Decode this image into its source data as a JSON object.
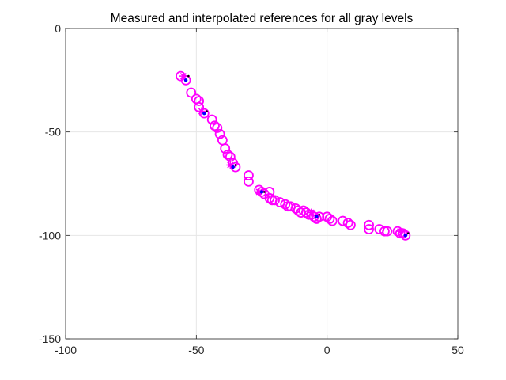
{
  "chart_data": {
    "type": "scatter",
    "title": "Measured and interpolated references for all gray levels",
    "xlabel": "",
    "ylabel": "",
    "xlim": [
      -100,
      50
    ],
    "ylim": [
      -150,
      0
    ],
    "xticks": [
      -100,
      -50,
      0,
      50
    ],
    "yticks": [
      0,
      -50,
      -100,
      -150
    ],
    "xtick_labels": [
      "-100",
      "-50",
      "0",
      "50"
    ],
    "ytick_labels": [
      "0",
      "-50",
      "-100",
      "-150"
    ],
    "grid": true,
    "legend": "none",
    "colors": {
      "circles": "#ff00ff",
      "stars": "#ff00ff",
      "dots": "#0000ff",
      "black_markers": "#000000",
      "grid": "#e6e6e6",
      "axis": "#262626"
    },
    "series": [
      {
        "marker": "circle",
        "color": "#ff00ff",
        "points": [
          [
            -56,
            -23
          ],
          [
            -54,
            -25
          ],
          [
            -52,
            -31
          ],
          [
            -50,
            -34
          ],
          [
            -49,
            -35
          ],
          [
            -49,
            -38
          ],
          [
            -47,
            -41
          ],
          [
            -44,
            -44
          ],
          [
            -43,
            -47
          ],
          [
            -42,
            -48
          ],
          [
            -41,
            -51
          ],
          [
            -40,
            -54
          ],
          [
            -39,
            -58
          ],
          [
            -38,
            -61
          ],
          [
            -37,
            -62
          ],
          [
            -36,
            -65
          ],
          [
            -35,
            -67
          ],
          [
            -30,
            -71
          ],
          [
            -30,
            -74
          ],
          [
            -26,
            -78
          ],
          [
            -25,
            -79
          ],
          [
            -24,
            -80
          ],
          [
            -22,
            -79
          ],
          [
            -22,
            -82
          ],
          [
            -21,
            -83
          ],
          [
            -20,
            -83
          ],
          [
            -18,
            -84
          ],
          [
            -16,
            -85
          ],
          [
            -15,
            -86
          ],
          [
            -14,
            -86
          ],
          [
            -12,
            -87
          ],
          [
            -11,
            -88
          ],
          [
            -10,
            -89
          ],
          [
            -9,
            -88
          ],
          [
            -8,
            -89
          ],
          [
            -7,
            -90
          ],
          [
            -6,
            -90
          ],
          [
            -5,
            -91
          ],
          [
            -4,
            -92
          ],
          [
            -3,
            -91
          ],
          [
            0,
            -91
          ],
          [
            1,
            -92
          ],
          [
            2,
            -93
          ],
          [
            6,
            -93
          ],
          [
            8,
            -94
          ],
          [
            9,
            -95
          ],
          [
            16,
            -95
          ],
          [
            16,
            -97
          ],
          [
            20,
            -97
          ],
          [
            22,
            -98
          ],
          [
            23,
            -98
          ],
          [
            27,
            -98
          ],
          [
            28,
            -99
          ],
          [
            29,
            -99
          ],
          [
            30,
            -100
          ]
        ]
      },
      {
        "marker": "star",
        "color": "#ff00ff",
        "points": [
          [
            -55,
            -23
          ],
          [
            -48,
            -40
          ],
          [
            -37,
            -66
          ],
          [
            -26,
            -79
          ],
          [
            -6,
            -89
          ],
          [
            28,
            -98
          ]
        ]
      },
      {
        "marker": "dot",
        "color": "#0000ff",
        "points": [
          [
            -54,
            -25
          ],
          [
            -47,
            -41
          ],
          [
            -36,
            -67
          ],
          [
            -25,
            -79
          ],
          [
            -4,
            -91
          ],
          [
            30,
            -100
          ]
        ]
      },
      {
        "marker": "black-dot",
        "color": "#000000",
        "points": [
          [
            -53,
            -23
          ],
          [
            -46,
            -40
          ],
          [
            -35,
            -66
          ],
          [
            -24,
            -79
          ],
          [
            -3,
            -90
          ],
          [
            31,
            -99
          ]
        ]
      }
    ]
  }
}
